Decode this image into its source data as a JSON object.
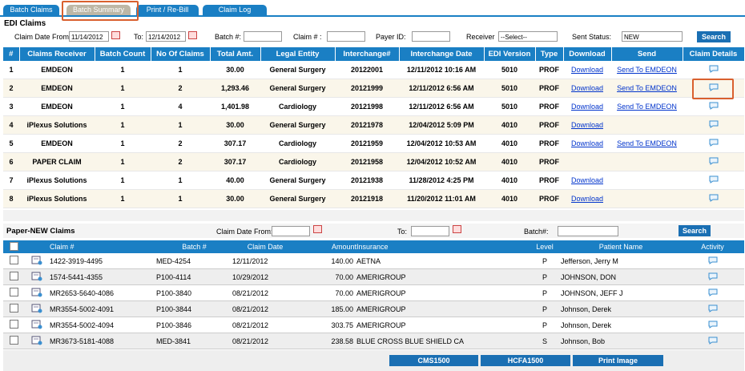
{
  "tabs": [
    "Batch Claims",
    "Batch Summary",
    "Print / Re-Bill",
    "Claim Log"
  ],
  "edi": {
    "title": "EDI Claims",
    "filters": {
      "date_from_label": "Claim Date From:",
      "date_from": "11/14/2012",
      "to_label": "To:",
      "date_to": "12/14/2012",
      "batch_label": "Batch #:",
      "claim_label": "Claim # :",
      "payer_label": "Payer ID:",
      "receiver_label": "Receiver",
      "receiver_value": "--Select--",
      "status_label": "Sent Status:",
      "status_value": "NEW",
      "search": "Search"
    },
    "headers": [
      "#",
      "Claims Receiver",
      "Batch Count",
      "No Of Claims",
      "Total Amt.",
      "Legal Entity",
      "Interchange#",
      "Interchange Date",
      "EDI Version",
      "Type",
      "Download",
      "Send",
      "Claim Details"
    ],
    "rows": [
      [
        "1",
        "EMDEON",
        "1",
        "1",
        "30.00",
        "General Surgery",
        "20122001",
        "12/11/2012 10:16 AM",
        "5010",
        "PROF",
        "Download",
        "Send To EMDEON"
      ],
      [
        "2",
        "EMDEON",
        "1",
        "2",
        "1,293.46",
        "General Surgery",
        "20121999",
        "12/11/2012 6:56 AM",
        "5010",
        "PROF",
        "Download",
        "Send To EMDEON"
      ],
      [
        "3",
        "EMDEON",
        "1",
        "4",
        "1,401.98",
        "Cardiology",
        "20121998",
        "12/11/2012 6:56 AM",
        "5010",
        "PROF",
        "Download",
        "Send To EMDEON"
      ],
      [
        "4",
        "iPlexus Solutions",
        "1",
        "1",
        "30.00",
        "General Surgery",
        "20121978",
        "12/04/2012 5:09 PM",
        "4010",
        "PROF",
        "Download",
        null
      ],
      [
        "5",
        "EMDEON",
        "1",
        "2",
        "307.17",
        "Cardiology",
        "20121959",
        "12/04/2012 10:53 AM",
        "4010",
        "PROF",
        "Download",
        "Send To EMDEON"
      ],
      [
        "6",
        "PAPER CLAIM",
        "1",
        "2",
        "307.17",
        "Cardiology",
        "20121958",
        "12/04/2012 10:52 AM",
        "4010",
        "PROF",
        null,
        null
      ],
      [
        "7",
        "iPlexus Solutions",
        "1",
        "1",
        "40.00",
        "General Surgery",
        "20121938",
        "11/28/2012 4:25 PM",
        "4010",
        "PROF",
        "Download",
        null
      ],
      [
        "8",
        "iPlexus Solutions",
        "1",
        "1",
        "30.00",
        "General Surgery",
        "20121918",
        "11/20/2012 11:01 AM",
        "4010",
        "PROF",
        "Download",
        null
      ]
    ]
  },
  "paper": {
    "title": "Paper-NEW Claims",
    "filters": {
      "date_from_label": "Claim Date From:",
      "to_label": "To:",
      "batch_label": "Batch#:",
      "search": "Search"
    },
    "headers": [
      "Claim #",
      "Batch #",
      "Claim Date",
      "Amount",
      "Insurance",
      "Level",
      "Patient Name",
      "Activity"
    ],
    "rows": [
      [
        "1422-3919-4495",
        "MED-4254",
        "12/11/2012",
        "140.00",
        "AETNA",
        "P",
        "Jefferson, Jerry M"
      ],
      [
        "1574-5441-4355",
        "P100-4114",
        "10/29/2012",
        "70.00",
        "AMERIGROUP",
        "P",
        "JOHNSON, DON"
      ],
      [
        "MR2653-5640-4086",
        "P100-3840",
        "08/21/2012",
        "70.00",
        "AMERIGROUP",
        "P",
        "JOHNSON, JEFF J"
      ],
      [
        "MR3554-5002-4091",
        "P100-3844",
        "08/21/2012",
        "185.00",
        "AMERIGROUP",
        "P",
        "Johnson, Derek"
      ],
      [
        "MR3554-5002-4094",
        "P100-3846",
        "08/21/2012",
        "303.75",
        "AMERIGROUP",
        "P",
        "Johnson, Derek"
      ],
      [
        "MR3673-5181-4088",
        "MED-3841",
        "08/21/2012",
        "238.58",
        "BLUE CROSS BLUE SHIELD CA",
        "S",
        "Johnson, Bob"
      ]
    ],
    "buttons": [
      "CMS1500",
      "HCFA1500",
      "Print Image"
    ]
  }
}
